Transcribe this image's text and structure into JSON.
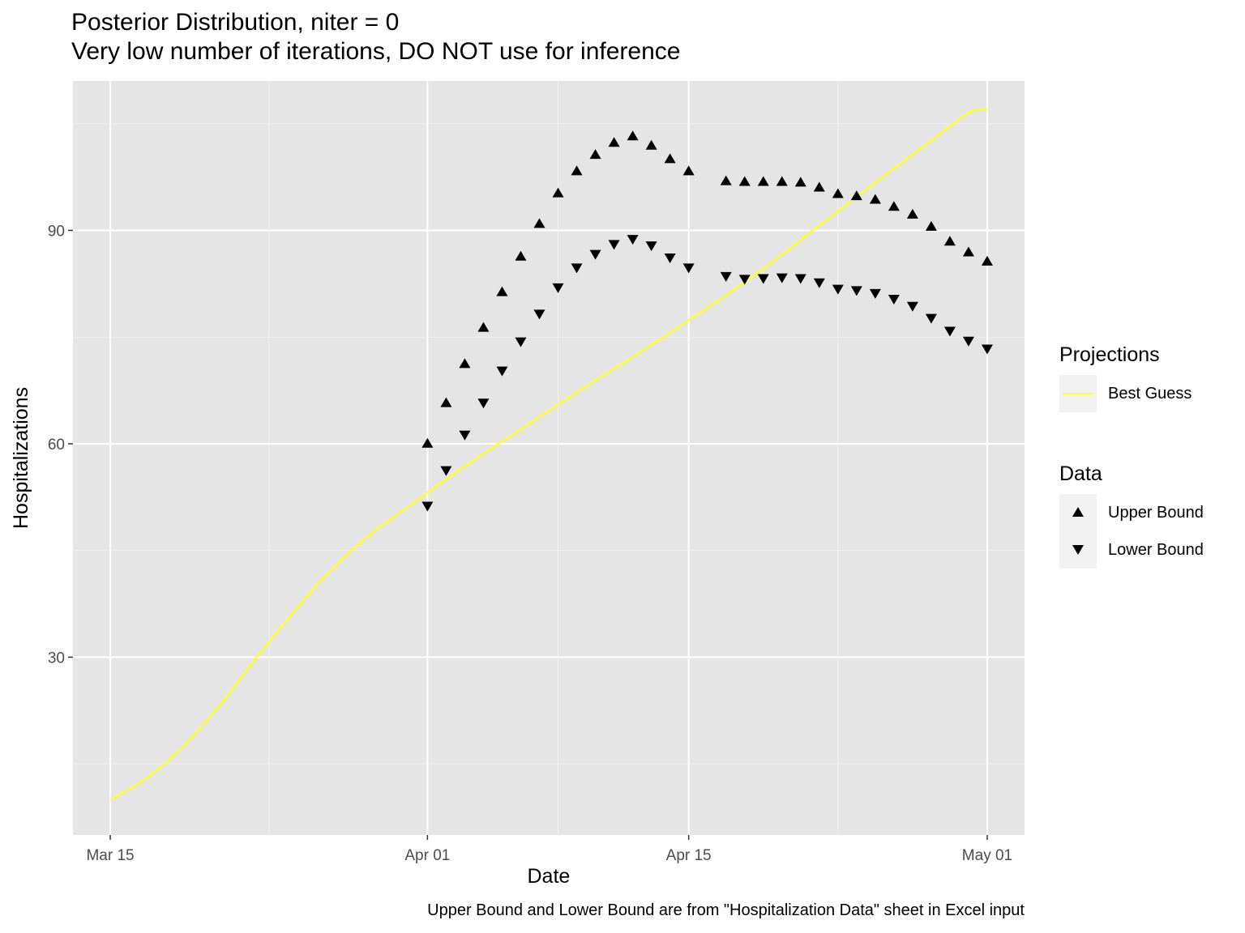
{
  "chart_data": {
    "type": "line",
    "title": "Posterior Distribution, niter = 0",
    "subtitle": "Very low number of iterations, DO NOT use for inference",
    "xlabel": "Date",
    "ylabel": "Hospitalizations",
    "caption": "Upper Bound and Lower Bound are from \"Hospitalization Data\" sheet in Excel input",
    "x_ticks": [
      "Mar 15",
      "Apr 01",
      "Apr 15",
      "May 01"
    ],
    "y_ticks": [
      30,
      60,
      90
    ],
    "xlim": [
      "2020-03-13",
      "2020-05-03"
    ],
    "ylim": [
      5,
      111
    ],
    "grid": true,
    "legend_placement": "right",
    "legend_groups": [
      {
        "title": "Projections",
        "entries": [
          {
            "label": "Best Guess",
            "key": "line",
            "color": "#ffff33"
          }
        ]
      },
      {
        "title": "Data",
        "entries": [
          {
            "label": "Upper Bound",
            "key": "triangle-up",
            "color": "#000000"
          },
          {
            "label": "Lower Bound",
            "key": "triangle-down",
            "color": "#000000"
          }
        ]
      }
    ],
    "series": [
      {
        "name": "Best Guess",
        "kind": "line",
        "color": "#ffff33",
        "x": [
          "2020-03-15",
          "2020-03-17",
          "2020-03-19",
          "2020-03-21",
          "2020-03-23",
          "2020-03-25",
          "2020-03-27",
          "2020-03-29",
          "2020-03-31",
          "2020-04-02",
          "2020-04-04",
          "2020-04-06",
          "2020-04-08",
          "2020-04-10",
          "2020-04-12",
          "2020-04-14",
          "2020-04-16",
          "2020-04-18",
          "2020-04-20",
          "2020-04-22",
          "2020-04-24",
          "2020-04-26",
          "2020-04-28",
          "2020-04-30",
          "2020-05-01"
        ],
        "values": [
          10,
          13.2,
          17.8,
          23.8,
          30.6,
          37,
          42.8,
          47.5,
          51.3,
          55.1,
          58.7,
          62.1,
          65.6,
          69,
          72.3,
          75.7,
          79.2,
          82.8,
          86.7,
          90.8,
          94.8,
          98.8,
          102.7,
          106.6,
          107
        ]
      },
      {
        "name": "Upper Bound",
        "kind": "scatter",
        "marker": "triangle-up",
        "x": [
          "2020-04-01",
          "2020-04-02",
          "2020-04-03",
          "2020-04-04",
          "2020-04-05",
          "2020-04-06",
          "2020-04-07",
          "2020-04-08",
          "2020-04-09",
          "2020-04-10",
          "2020-04-11",
          "2020-04-12",
          "2020-04-13",
          "2020-04-14",
          "2020-04-15",
          "2020-04-17",
          "2020-04-18",
          "2020-04-19",
          "2020-04-20",
          "2020-04-21",
          "2020-04-22",
          "2020-04-23",
          "2020-04-24",
          "2020-04-25",
          "2020-04-26",
          "2020-04-27",
          "2020-04-28",
          "2020-04-29",
          "2020-04-30",
          "2020-05-01"
        ],
        "values": [
          60,
          65.7,
          71.2,
          76.3,
          81.3,
          86.3,
          90.9,
          95.2,
          98.3,
          100.6,
          102.3,
          103.2,
          101.9,
          100,
          98.3,
          96.9,
          96.8,
          96.8,
          96.8,
          96.7,
          96,
          95.1,
          94.8,
          94.3,
          93.3,
          92.2,
          90.5,
          88.4,
          86.9,
          85.6
        ]
      },
      {
        "name": "Lower Bound",
        "kind": "scatter",
        "marker": "triangle-down",
        "x": [
          "2020-04-01",
          "2020-04-02",
          "2020-04-03",
          "2020-04-04",
          "2020-04-05",
          "2020-04-06",
          "2020-04-07",
          "2020-04-08",
          "2020-04-09",
          "2020-04-10",
          "2020-04-11",
          "2020-04-12",
          "2020-04-13",
          "2020-04-14",
          "2020-04-15",
          "2020-04-17",
          "2020-04-18",
          "2020-04-19",
          "2020-04-20",
          "2020-04-21",
          "2020-04-22",
          "2020-04-23",
          "2020-04-24",
          "2020-04-25",
          "2020-04-26",
          "2020-04-27",
          "2020-04-28",
          "2020-04-29",
          "2020-04-30",
          "2020-05-01"
        ],
        "values": [
          51.3,
          56.3,
          61.3,
          65.8,
          70.3,
          74.4,
          78.3,
          82,
          84.8,
          86.7,
          88.1,
          88.8,
          87.9,
          86.2,
          84.8,
          83.6,
          83.2,
          83.3,
          83.4,
          83.3,
          82.7,
          81.8,
          81.6,
          81.2,
          80.4,
          79.4,
          77.7,
          75.9,
          74.5,
          73.4
        ]
      }
    ]
  }
}
